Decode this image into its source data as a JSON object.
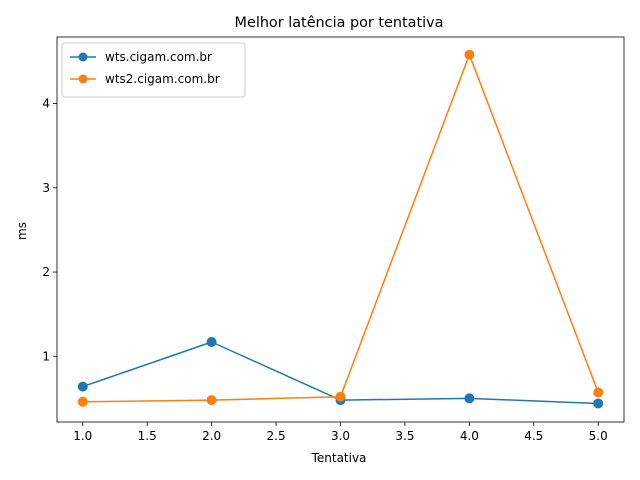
{
  "chart_data": {
    "type": "line",
    "title": "Melhor latência por tentativa",
    "xlabel": "Tentativa",
    "ylabel": "ms",
    "xlim": [
      0.8,
      5.2
    ],
    "ylim": [
      0.22,
      4.79
    ],
    "xticks": [
      1.0,
      1.5,
      2.0,
      2.5,
      3.0,
      3.5,
      4.0,
      4.5,
      5.0
    ],
    "xtick_labels": [
      "1.0",
      "1.5",
      "2.0",
      "2.5",
      "3.0",
      "3.5",
      "4.0",
      "4.5",
      "5.0"
    ],
    "yticks": [
      1,
      2,
      3,
      4
    ],
    "ytick_labels": [
      "1",
      "2",
      "3",
      "4"
    ],
    "grid": false,
    "legend_position": "top-left",
    "x": [
      1,
      2,
      3,
      4,
      5
    ],
    "series": [
      {
        "name": "wts.cigam.com.br",
        "color": "#1f77b4",
        "values": [
          0.64,
          1.17,
          0.48,
          0.5,
          0.44
        ]
      },
      {
        "name": "wts2.cigam.com.br",
        "color": "#ff7f0e",
        "values": [
          0.46,
          0.48,
          0.52,
          4.58,
          0.57
        ]
      }
    ]
  }
}
